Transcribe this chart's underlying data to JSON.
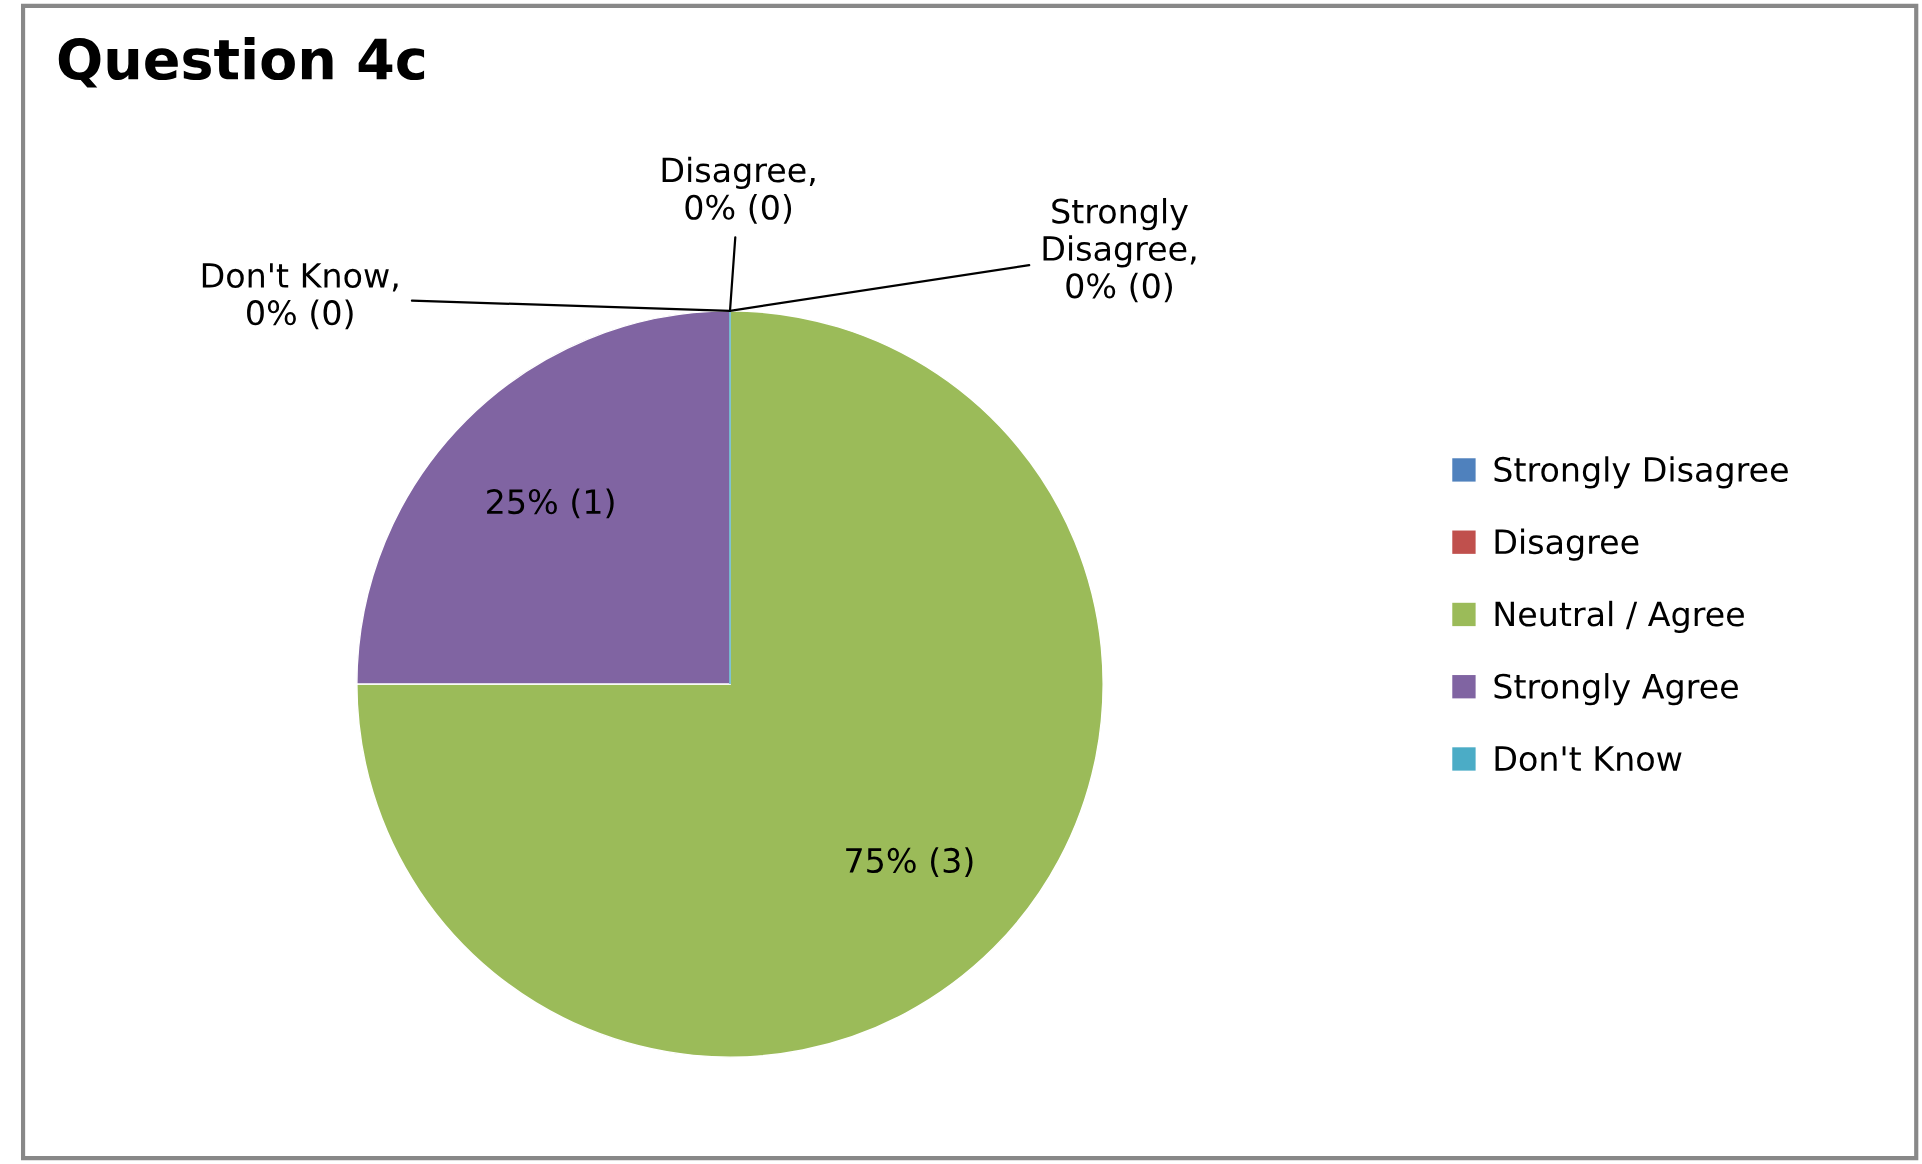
{
  "chart_data": {
    "type": "pie",
    "title": "Question 4c",
    "categories": [
      "Strongly Disagree",
      "Disagree",
      "Neutral / Agree",
      "Strongly Agree",
      "Don't Know"
    ],
    "values": [
      0,
      0,
      3,
      1,
      0
    ],
    "colors": [
      "#4f81bd",
      "#c0504d",
      "#9bbb59",
      "#8064a2",
      "#4bacc6"
    ],
    "value_labels": [
      "Strongly\nDisagree,\n0% (0)",
      "Disagree,\n0% (0)",
      "75% (3)",
      "25% (1)",
      "Don't Know,\n0% (0)"
    ],
    "legend": "right"
  }
}
